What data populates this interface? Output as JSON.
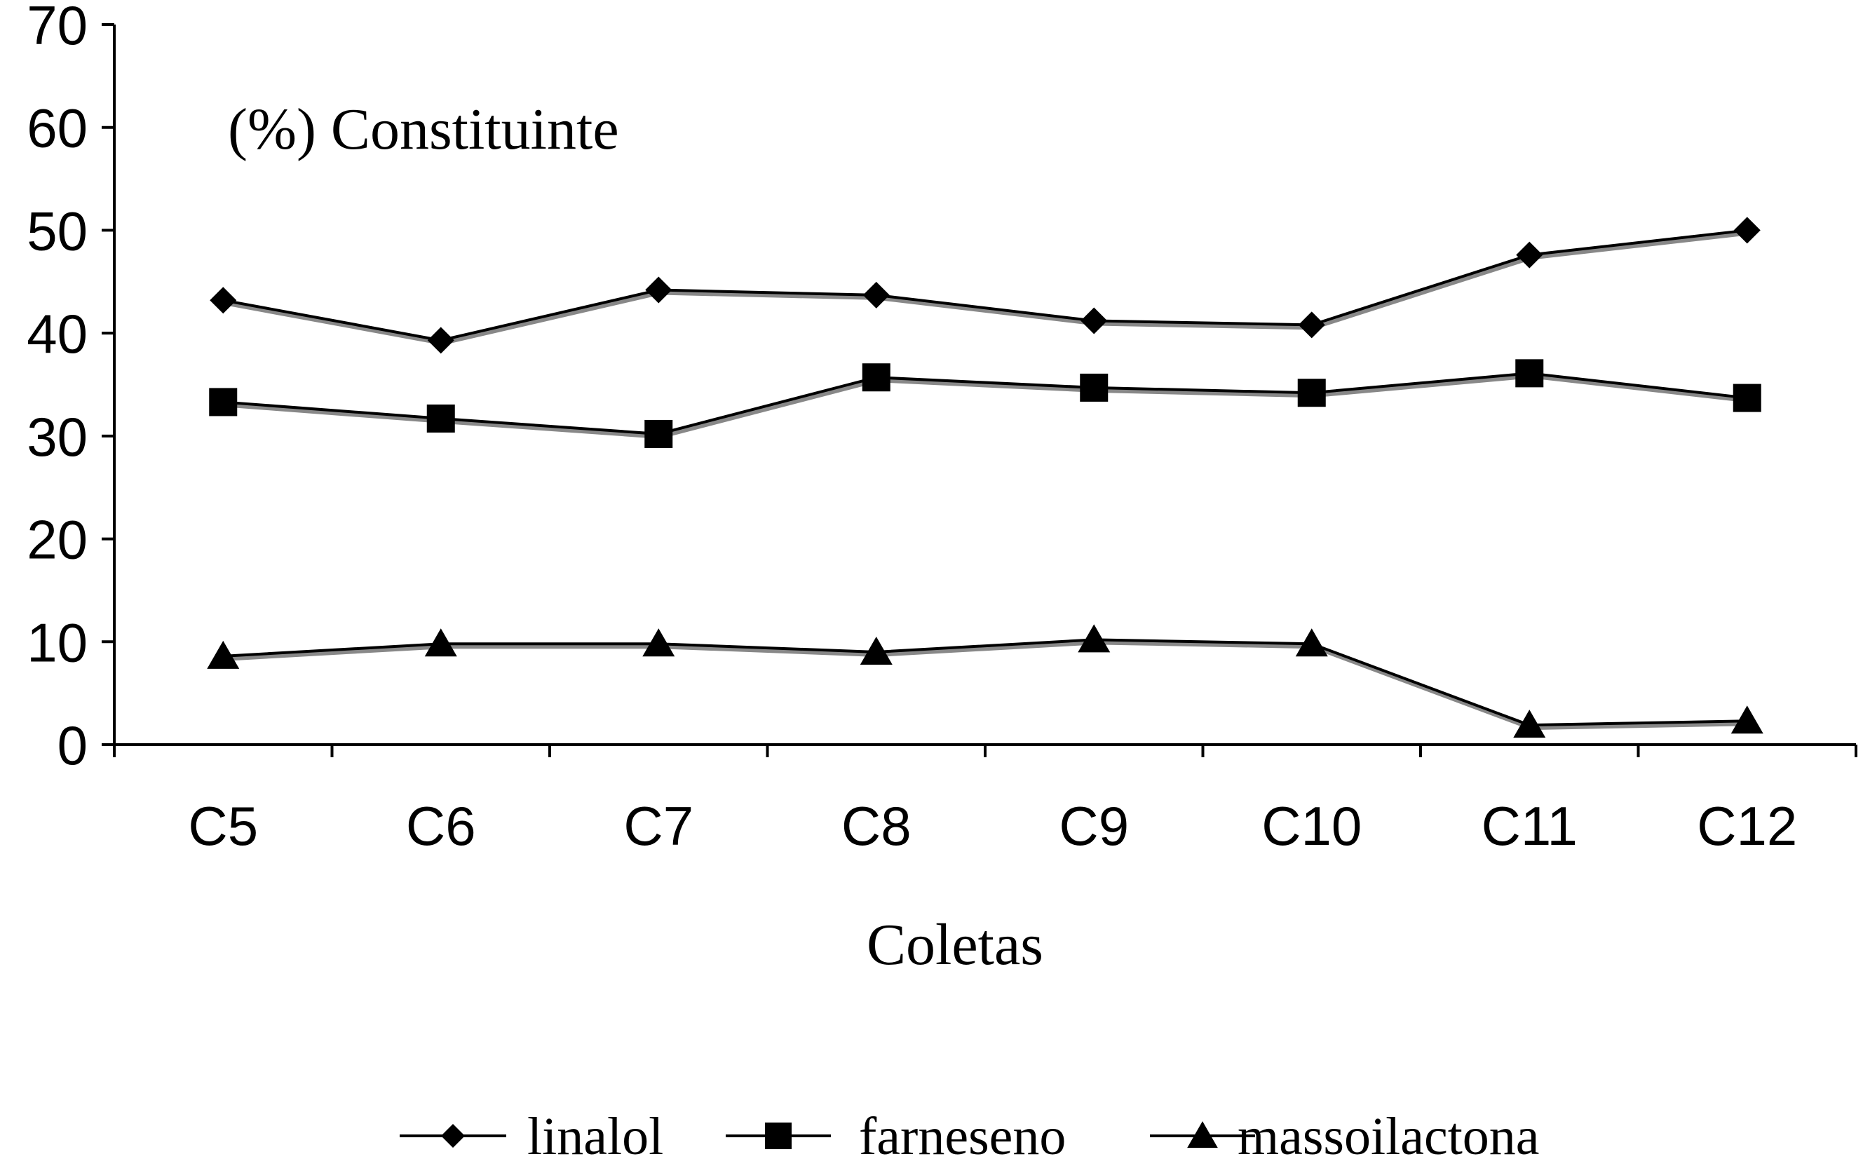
{
  "chart_data": {
    "type": "line",
    "title": "",
    "ylabel": "(%) Constituinte",
    "xlabel": "Coletas",
    "categories": [
      "C5",
      "C6",
      "C7",
      "C8",
      "C9",
      "C10",
      "C11",
      "C12"
    ],
    "ylim": [
      0,
      70
    ],
    "yticks": [
      0,
      10,
      20,
      30,
      40,
      50,
      60,
      70
    ],
    "grid": false,
    "legend_position": "bottom",
    "series": [
      {
        "name": "linalol",
        "marker": "diamond",
        "color": "#000000",
        "values": [
          43.2,
          39.3,
          44.2,
          43.7,
          41.2,
          40.8,
          47.6,
          50.0
        ]
      },
      {
        "name": "farneseno",
        "marker": "square",
        "color": "#000000",
        "values": [
          33.3,
          31.7,
          30.2,
          35.7,
          34.7,
          34.2,
          36.1,
          33.7
        ]
      },
      {
        "name": "massoilactona",
        "marker": "triangle",
        "color": "#000000",
        "values": [
          8.6,
          9.8,
          9.8,
          9.0,
          10.2,
          9.8,
          1.9,
          2.3
        ]
      }
    ]
  }
}
